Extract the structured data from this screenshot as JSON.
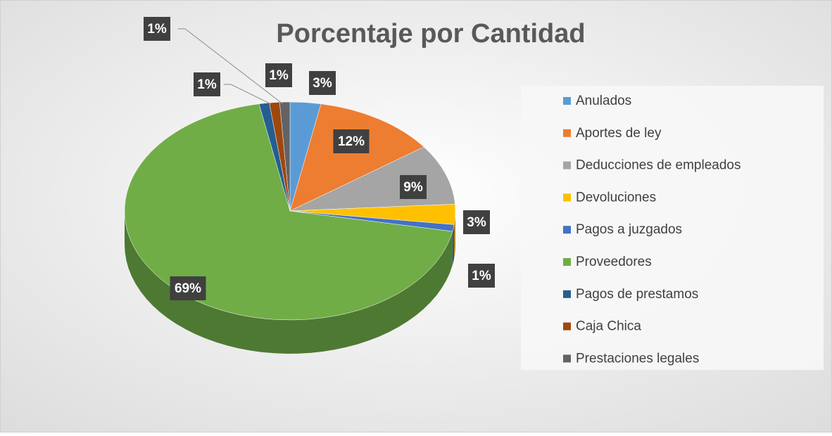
{
  "chart_data": {
    "type": "pie",
    "title": "Porcentaje por Cantidad",
    "categories": [
      "Anulados",
      "Aportes de ley",
      "Deducciones de empleados",
      "Devoluciones",
      "Pagos a juzgados",
      "Proveedores",
      "Pagos de prestamos",
      "Caja Chica",
      "Prestaciones legales"
    ],
    "values": [
      3,
      12,
      9,
      3,
      1,
      69,
      1,
      1,
      1
    ],
    "value_labels": [
      "3%",
      "12%",
      "9%",
      "3%",
      "1%",
      "69%",
      "1%",
      "1%",
      "1%"
    ],
    "colors": [
      "#5b9bd5",
      "#ed7d31",
      "#a5a5a5",
      "#ffc000",
      "#4472c4",
      "#70ad47",
      "#255e91",
      "#9e480e",
      "#636363"
    ],
    "legend": "right"
  }
}
